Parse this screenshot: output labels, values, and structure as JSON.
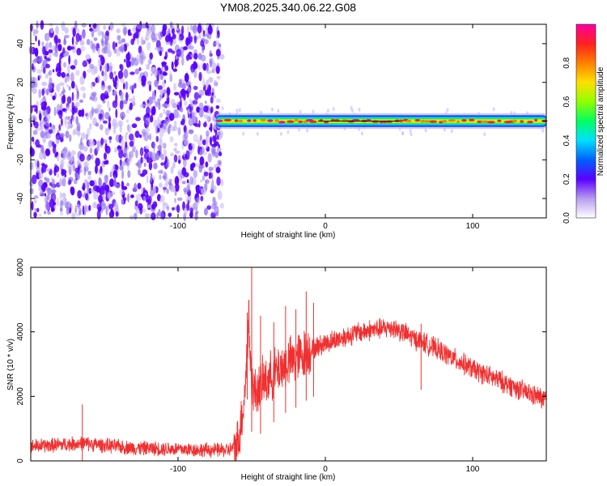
{
  "title": "YM08.2025.340.06.22.G08",
  "chart_data": [
    {
      "type": "heatmap",
      "title": "YM08.2025.340.06.22.G08",
      "xlabel": "Height of straight line (km)",
      "ylabel": "Frequency (Hz)",
      "xlim": [
        -200,
        150
      ],
      "ylim": [
        -50,
        50
      ],
      "xticks": [
        -100,
        0,
        100
      ],
      "yticks": [
        -40,
        -20,
        0,
        20,
        40
      ],
      "grid": false,
      "noise_region_x": [
        -200,
        -70
      ],
      "signal_band_x": [
        -74,
        150
      ],
      "signal_band_center_hz": 0,
      "signal_band_halfwidth_hz": 3,
      "colorbar": {
        "label": "Normalized spectral amplitude",
        "range": [
          0,
          1
        ],
        "ticks": [
          "0.0",
          "0.2",
          "0.4",
          "0.6",
          "0.8"
        ],
        "colors": [
          "#ffffff",
          "#b89cf0",
          "#5a00ff",
          "#0060ff",
          "#00e0ff",
          "#00ff60",
          "#90ff00",
          "#ffe000",
          "#ff8000",
          "#ff2020",
          "#ff00a0"
        ]
      }
    },
    {
      "type": "line",
      "xlabel": "Height of straight line (km)",
      "ylabel": "SNR (10 * v/v)",
      "xlim": [
        -200,
        150
      ],
      "ylim": [
        0,
        6000
      ],
      "xticks": [
        -100,
        0,
        100
      ],
      "yticks": [
        0,
        2000,
        4000,
        6000
      ],
      "grid": false,
      "series": [
        {
          "color": "#f03030",
          "x": [
            -200,
            -180,
            -165,
            -150,
            -130,
            -110,
            -90,
            -75,
            -65,
            -60,
            -58,
            -55,
            -53,
            -52,
            -51,
            -50,
            -48,
            -45,
            -40,
            -35,
            -30,
            -25,
            -20,
            -15,
            -12,
            -10,
            -5,
            0,
            10,
            20,
            30,
            40,
            45,
            50,
            60,
            70,
            80,
            90,
            100,
            110,
            120,
            130,
            140,
            150
          ],
          "y": [
            450,
            500,
            550,
            480,
            400,
            380,
            350,
            330,
            340,
            500,
            900,
            2000,
            3400,
            4500,
            3200,
            2400,
            2100,
            2300,
            2500,
            2700,
            2900,
            3050,
            3150,
            3300,
            3400,
            3450,
            3550,
            3650,
            3800,
            3950,
            4050,
            4100,
            4150,
            4050,
            3800,
            3600,
            3350,
            3100,
            2850,
            2650,
            2450,
            2250,
            2050,
            1900
          ]
        }
      ],
      "spikes": [
        {
          "x": -165,
          "y": 1750
        },
        {
          "x": -53,
          "y": 4600
        },
        {
          "x": -50,
          "y": 6000
        },
        {
          "x": -44,
          "y": 4500
        },
        {
          "x": -35,
          "y": 4300
        },
        {
          "x": -27,
          "y": 4800
        },
        {
          "x": -20,
          "y": 4700
        },
        {
          "x": -13,
          "y": 5250
        },
        {
          "x": -8,
          "y": 4900
        },
        {
          "x": 65,
          "y": 4250
        }
      ]
    }
  ]
}
